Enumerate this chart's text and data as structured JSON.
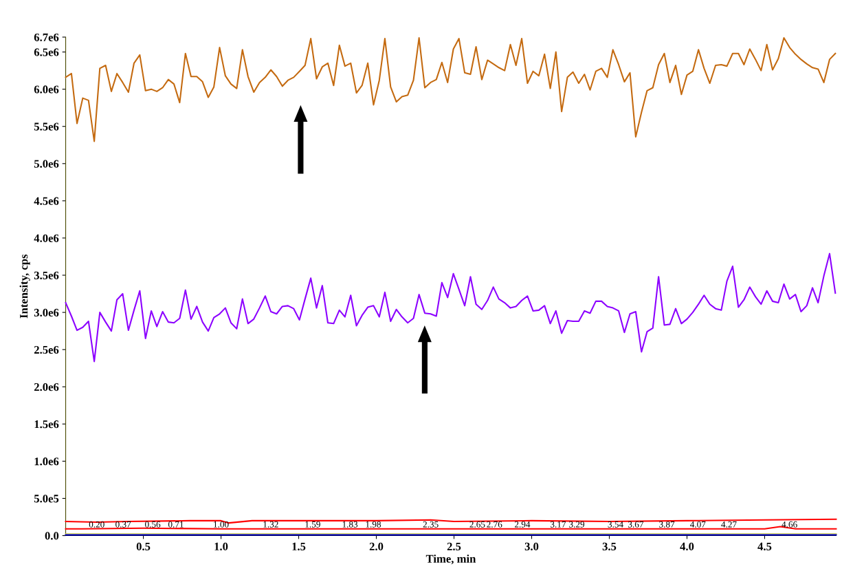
{
  "chart_data": {
    "type": "line",
    "xlabel": "Time, min",
    "ylabel": "Intensity, cps",
    "xlim": [
      0,
      4.96
    ],
    "ylim": [
      0,
      6700000
    ],
    "xticks": [
      {
        "value": 0.5,
        "label": "0.5"
      },
      {
        "value": 1.0,
        "label": "1.0"
      },
      {
        "value": 1.5,
        "label": "1.5"
      },
      {
        "value": 2.0,
        "label": "2.0"
      },
      {
        "value": 2.5,
        "label": "2.5"
      },
      {
        "value": 3.0,
        "label": "3.0"
      },
      {
        "value": 3.5,
        "label": "3.5"
      },
      {
        "value": 4.0,
        "label": "4.0"
      },
      {
        "value": 4.5,
        "label": "4.5"
      }
    ],
    "yticks": [
      {
        "value": 0,
        "label": "0.0"
      },
      {
        "value": 500000,
        "label": "5.0e5"
      },
      {
        "value": 1000000,
        "label": "1.0e6"
      },
      {
        "value": 1500000,
        "label": "1.5e6"
      },
      {
        "value": 2000000,
        "label": "2.0e6"
      },
      {
        "value": 2500000,
        "label": "2.5e6"
      },
      {
        "value": 3000000,
        "label": "3.0e6"
      },
      {
        "value": 3500000,
        "label": "3.5e6"
      },
      {
        "value": 4000000,
        "label": "4.0e6"
      },
      {
        "value": 4500000,
        "label": "4.5e6"
      },
      {
        "value": 5000000,
        "label": "5.0e6"
      },
      {
        "value": 5500000,
        "label": "5.5e6"
      },
      {
        "value": 6000000,
        "label": "6.0e6"
      },
      {
        "value": 6500000,
        "label": "6.5e6"
      },
      {
        "value": 6700000,
        "label": "6.7e6"
      }
    ],
    "grid": false,
    "legend": false,
    "x": [
      0,
      0.037,
      0.073,
      0.11,
      0.147,
      0.184,
      0.22,
      0.257,
      0.294,
      0.33,
      0.367,
      0.404,
      0.44,
      0.477,
      0.514,
      0.551,
      0.587,
      0.624,
      0.661,
      0.697,
      0.734,
      0.771,
      0.807,
      0.844,
      0.881,
      0.918,
      0.954,
      0.991,
      1.028,
      1.064,
      1.101,
      1.138,
      1.174,
      1.211,
      1.248,
      1.285,
      1.321,
      1.358,
      1.395,
      1.431,
      1.468,
      1.505,
      1.541,
      1.578,
      1.615,
      1.652,
      1.688,
      1.725,
      1.762,
      1.798,
      1.835,
      1.872,
      1.908,
      1.945,
      1.982,
      2.019,
      2.055,
      2.092,
      2.129,
      2.165,
      2.202,
      2.239,
      2.275,
      2.312,
      2.349,
      2.386,
      2.422,
      2.459,
      2.496,
      2.532,
      2.569,
      2.606,
      2.642,
      2.679,
      2.716,
      2.753,
      2.789,
      2.826,
      2.863,
      2.899,
      2.936,
      2.973,
      3.009,
      3.046,
      3.083,
      3.12,
      3.156,
      3.193,
      3.23,
      3.266,
      3.303,
      3.34,
      3.376,
      3.413,
      3.45,
      3.487,
      3.523,
      3.56,
      3.597,
      3.633,
      3.67,
      3.707,
      3.743,
      3.78,
      3.817,
      3.854,
      3.89,
      3.927,
      3.964,
      4.0,
      4.037,
      4.074,
      4.11,
      4.147,
      4.184,
      4.221,
      4.257,
      4.294,
      4.331,
      4.367,
      4.404,
      4.441,
      4.477,
      4.514,
      4.551,
      4.588,
      4.624,
      4.661,
      4.698,
      4.734,
      4.771,
      4.808,
      4.844,
      4.881,
      4.918,
      4.955
    ],
    "series": [
      {
        "color": "#c46a10",
        "values": [
          6160000.0,
          6210000.0,
          5540000.0,
          5880000.0,
          5850000.0,
          5300000.0,
          6280000.0,
          6320000.0,
          5970000.0,
          6210000.0,
          6090000.0,
          5960000.0,
          6350000.0,
          6460000.0,
          5980000.0,
          6000000.0,
          5970000.0,
          6020000.0,
          6130000.0,
          6070000.0,
          5820000.0,
          6480000.0,
          6170000.0,
          6170000.0,
          6100000.0,
          5890000.0,
          6030000.0,
          6560000.0,
          6180000.0,
          6070000.0,
          6010000.0,
          6530000.0,
          6170000.0,
          5960000.0,
          6090000.0,
          6160000.0,
          6260000.0,
          6170000.0,
          6040000.0,
          6120000.0,
          6160000.0,
          6240000.0,
          6320000.0,
          6680000.0,
          6140000.0,
          6300000.0,
          6350000.0,
          6050000.0,
          6590000.0,
          6310000.0,
          6350000.0,
          5950000.0,
          6050000.0,
          6350000.0,
          5790000.0,
          6120000.0,
          6680000.0,
          6030000.0,
          5830000.0,
          5900000.0,
          5920000.0,
          6120000.0,
          6690000.0,
          6020000.0,
          6090000.0,
          6130000.0,
          6360000.0,
          6090000.0,
          6540000.0,
          6680000.0,
          6220000.0,
          6200000.0,
          6570000.0,
          6130000.0,
          6390000.0,
          6340000.0,
          6290000.0,
          6250000.0,
          6600000.0,
          6320000.0,
          6680000.0,
          6080000.0,
          6240000.0,
          6180000.0,
          6470000.0,
          6010000.0,
          6500000.0,
          5700000.0,
          6160000.0,
          6230000.0,
          6080000.0,
          6200000.0,
          5990000.0,
          6240000.0,
          6280000.0,
          6160000.0,
          6530000.0,
          6330000.0,
          6100000.0,
          6220000.0,
          5360000.0,
          5690000.0,
          5980000.0,
          6020000.0,
          6330000.0,
          6480000.0,
          6090000.0,
          6320000.0,
          5930000.0,
          6190000.0,
          6240000.0,
          6530000.0,
          6280000.0,
          6080000.0,
          6320000.0,
          6330000.0,
          6310000.0,
          6480000.0,
          6480000.0,
          6330000.0,
          6540000.0,
          6400000.0,
          6250000.0,
          6600000.0,
          6260000.0,
          6410000.0,
          6690000.0,
          6560000.0,
          6470000.0,
          6400000.0,
          6340000.0,
          6290000.0,
          6270000.0,
          6090000.0,
          6400000.0,
          6480000.0
        ]
      },
      {
        "color": "#8c00ff",
        "values": [
          3130000.0,
          2950000.0,
          2760000.0,
          2800000.0,
          2880000.0,
          2340000.0,
          3000000.0,
          2870000.0,
          2750000.0,
          3170000.0,
          3250000.0,
          2760000.0,
          3030000.0,
          3290000.0,
          2650000.0,
          3020000.0,
          2810000.0,
          3010000.0,
          2870000.0,
          2860000.0,
          2920000.0,
          3300000.0,
          2910000.0,
          3080000.0,
          2870000.0,
          2750000.0,
          2930000.0,
          2980000.0,
          3060000.0,
          2860000.0,
          2780000.0,
          3180000.0,
          2850000.0,
          2910000.0,
          3060000.0,
          3220000.0,
          3010000.0,
          2980000.0,
          3080000.0,
          3090000.0,
          3050000.0,
          2900000.0,
          3180000.0,
          3460000.0,
          3060000.0,
          3360000.0,
          2860000.0,
          2850000.0,
          3030000.0,
          2940000.0,
          3230000.0,
          2820000.0,
          2960000.0,
          3070000.0,
          3090000.0,
          2940000.0,
          3270000.0,
          2880000.0,
          3040000.0,
          2940000.0,
          2860000.0,
          2920000.0,
          3240000.0,
          2990000.0,
          2980000.0,
          2950000.0,
          3400000.0,
          3200000.0,
          3520000.0,
          3310000.0,
          3090000.0,
          3480000.0,
          3110000.0,
          3040000.0,
          3160000.0,
          3340000.0,
          3180000.0,
          3130000.0,
          3060000.0,
          3080000.0,
          3160000.0,
          3220000.0,
          3020000.0,
          3030000.0,
          3090000.0,
          2850000.0,
          3020000.0,
          2720000.0,
          2890000.0,
          2880000.0,
          2880000.0,
          3020000.0,
          2990000.0,
          3150000.0,
          3150000.0,
          3080000.0,
          3060000.0,
          3020000.0,
          2730000.0,
          2980000.0,
          3010000.0,
          2470000.0,
          2740000.0,
          2790000.0,
          3480000.0,
          2830000.0,
          2840000.0,
          3050000.0,
          2850000.0,
          2910000.0,
          3000000.0,
          3110000.0,
          3230000.0,
          3110000.0,
          3050000.0,
          3030000.0,
          3420000.0,
          3620000.0,
          3070000.0,
          3170000.0,
          3340000.0,
          3210000.0,
          3110000.0,
          3290000.0,
          3150000.0,
          3130000.0,
          3380000.0,
          3180000.0,
          3240000.0,
          3010000.0,
          3090000.0,
          3330000.0,
          3130000.0,
          3490000.0,
          3790000.0,
          3260000.0
        ]
      },
      {
        "color": "#ff0000",
        "x": [
          0,
          0.2,
          0.4,
          0.8,
          1.0,
          1.05,
          1.2,
          2.0,
          2.35,
          2.5,
          3.0,
          3.5,
          4.0,
          4.5,
          4.96
        ],
        "values": [
          190000,
          180000,
          190000,
          200000,
          200000,
          170000,
          200000,
          200000,
          210000,
          190000,
          200000,
          190000,
          200000,
          210000,
          220000
        ]
      },
      {
        "color": "#ff0000",
        "x": [
          0,
          0.1,
          0.5,
          1.0,
          1.5,
          2.0,
          2.5,
          3.0,
          3.5,
          4.0,
          4.5,
          4.6,
          4.7,
          4.96
        ],
        "values": [
          90000,
          90000,
          100000,
          90000,
          90000,
          90000,
          90000,
          90000,
          90000,
          90000,
          90000,
          120000,
          90000,
          90000
        ]
      },
      {
        "color": "#d2d24a",
        "x": [
          0,
          1.0,
          2.0,
          3.0,
          4.0,
          4.96
        ],
        "values": [
          20000,
          20000,
          20000,
          20000,
          20000,
          20000
        ]
      },
      {
        "color": "#0000cc",
        "x": [
          0,
          4.96
        ],
        "values": [
          10000,
          10000
        ]
      }
    ],
    "annotations": [
      {
        "text": "0.20",
        "x": 0.2,
        "y": 140000
      },
      {
        "text": "0.37",
        "x": 0.37,
        "y": 140000
      },
      {
        "text": "0.56",
        "x": 0.56,
        "y": 140000
      },
      {
        "text": "0.71",
        "x": 0.71,
        "y": 140000
      },
      {
        "text": "1.00",
        "x": 1.0,
        "y": 140000
      },
      {
        "text": "1.32",
        "x": 1.32,
        "y": 140000
      },
      {
        "text": "1.59",
        "x": 1.59,
        "y": 140000
      },
      {
        "text": "1.83",
        "x": 1.83,
        "y": 140000
      },
      {
        "text": "1.98",
        "x": 1.98,
        "y": 140000
      },
      {
        "text": "2.35",
        "x": 2.35,
        "y": 140000
      },
      {
        "text": "2.65",
        "x": 2.65,
        "y": 140000
      },
      {
        "text": "2.76",
        "x": 2.76,
        "y": 140000
      },
      {
        "text": "2.94",
        "x": 2.94,
        "y": 140000
      },
      {
        "text": "3.17",
        "x": 3.17,
        "y": 140000
      },
      {
        "text": "3.29",
        "x": 3.29,
        "y": 140000
      },
      {
        "text": "3.54",
        "x": 3.54,
        "y": 140000
      },
      {
        "text": "3.67",
        "x": 3.67,
        "y": 140000
      },
      {
        "text": "3.87",
        "x": 3.87,
        "y": 140000
      },
      {
        "text": "4.07",
        "x": 4.07,
        "y": 140000
      },
      {
        "text": "4.27",
        "x": 4.27,
        "y": 140000
      },
      {
        "text": "4.66",
        "x": 4.66,
        "y": 140000
      }
    ]
  }
}
